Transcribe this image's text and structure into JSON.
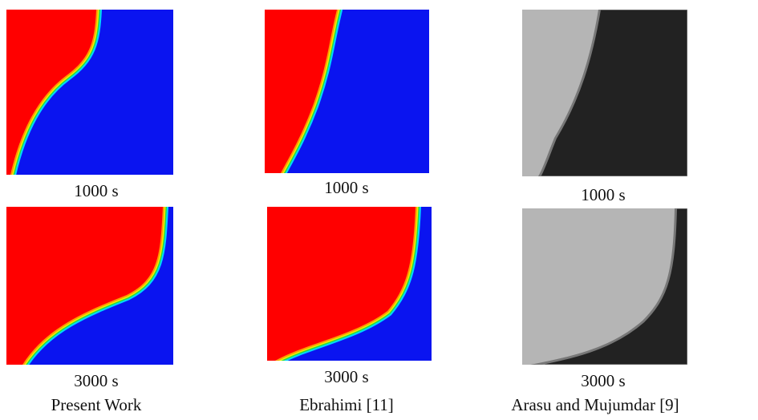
{
  "columns": [
    {
      "caption": "Present Work",
      "panels": [
        {
          "label": "1000 s"
        },
        {
          "label": "3000 s"
        }
      ]
    },
    {
      "caption": "Ebrahimi [11]",
      "panels": [
        {
          "label": "1000 s"
        },
        {
          "label": "3000 s"
        }
      ]
    },
    {
      "caption": "Arasu and Mujumdar [9]",
      "panels": [
        {
          "label": "1000 s"
        },
        {
          "label": "3000 s"
        }
      ]
    }
  ]
}
